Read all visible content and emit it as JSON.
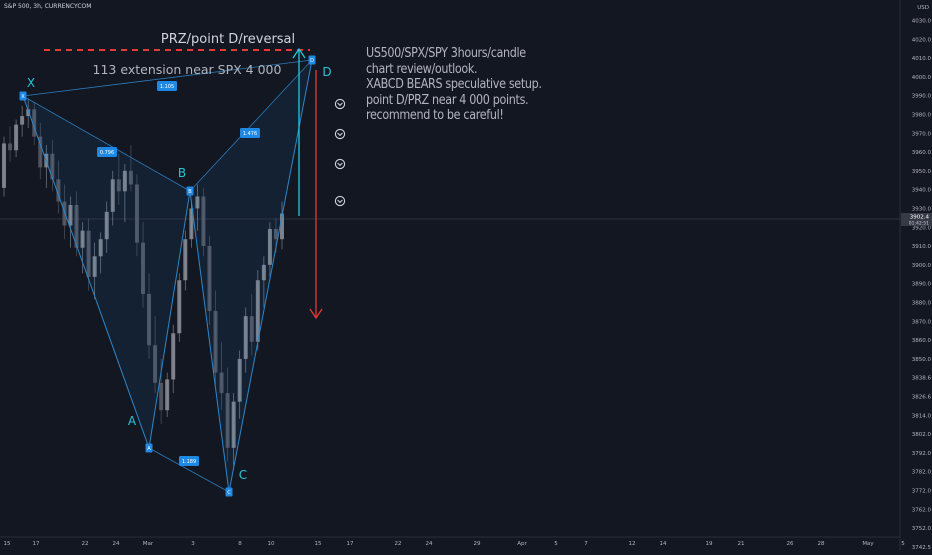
{
  "header": {
    "symbol": "S&P 500, 3h, CURRENCYCOM"
  },
  "annotations": {
    "prz_title": "PRZ/point D/reversal",
    "extension_text": "113 extension near SPX 4 000",
    "note_lines": [
      "US500/SPX/SPY 3hours/candle",
      "chart review/outlook.",
      "XABCD BEARS speculative setup.",
      "point D/PRZ near 4 000 points.",
      "recommend to be careful!"
    ]
  },
  "chart_data": {
    "type": "candlestick",
    "y_axis": {
      "ticks": [
        "4030.0",
        "4020.0",
        "4010.0",
        "4000.0",
        "3990.0",
        "3980.0",
        "3970.0",
        "3960.0",
        "3950.0",
        "3940.0",
        "3930.0",
        "3920.0",
        "3910.0",
        "3900.0",
        "3890.0",
        "3880.0",
        "3870.0",
        "3860.0",
        "3850.0",
        "3838.6",
        "3826.6",
        "3814.0",
        "3802.0",
        "3792.0",
        "3782.0",
        "3772.0",
        "3762.0",
        "3752.0",
        "3742.5"
      ],
      "top_label": "USD",
      "current_price": "3902.4",
      "countdown": "01:42:51"
    },
    "x_axis": {
      "ticks": [
        "15",
        "17",
        "22",
        "24",
        "Mar",
        "3",
        "8",
        "10",
        "15",
        "17",
        "22",
        "24",
        "29",
        "Apr",
        "5",
        "7",
        "12",
        "14",
        "19",
        "21",
        "26",
        "28",
        "May",
        "5"
      ]
    },
    "pattern": {
      "name": "XABCD",
      "points": [
        {
          "label": "X",
          "time": "Feb 16",
          "price": 3970
        },
        {
          "label": "A",
          "time": "Feb 26",
          "price": 3785
        },
        {
          "label": "B",
          "time": "Mar 2",
          "price": 3920
        },
        {
          "label": "C",
          "time": "Mar 8",
          "price": 3758
        },
        {
          "label": "D",
          "time": "Mar 12",
          "price": 3992
        }
      ],
      "ratios": [
        {
          "leg": "XD",
          "value": "1.105"
        },
        {
          "leg": "XB",
          "value": "0.796"
        },
        {
          "leg": "BD",
          "value": "1.476"
        },
        {
          "leg": "AC",
          "value": "1.189"
        }
      ]
    },
    "candles": [
      [
        3920,
        3950,
        3915,
        3946
      ],
      [
        3946,
        3956,
        3935,
        3942
      ],
      [
        3942,
        3960,
        3938,
        3957
      ],
      [
        3957,
        3968,
        3950,
        3962
      ],
      [
        3962,
        3972,
        3955,
        3966
      ],
      [
        3966,
        3970,
        3945,
        3950
      ],
      [
        3950,
        3958,
        3925,
        3932
      ],
      [
        3932,
        3945,
        3920,
        3940
      ],
      [
        3940,
        3948,
        3918,
        3925
      ],
      [
        3925,
        3936,
        3905,
        3912
      ],
      [
        3912,
        3922,
        3890,
        3898
      ],
      [
        3898,
        3915,
        3885,
        3910
      ],
      [
        3910,
        3918,
        3880,
        3885
      ],
      [
        3885,
        3900,
        3870,
        3895
      ],
      [
        3895,
        3902,
        3860,
        3868
      ],
      [
        3868,
        3888,
        3855,
        3880
      ],
      [
        3880,
        3894,
        3870,
        3890
      ],
      [
        3890,
        3912,
        3882,
        3906
      ],
      [
        3906,
        3930,
        3898,
        3925
      ],
      [
        3925,
        3940,
        3910,
        3918
      ],
      [
        3918,
        3934,
        3900,
        3930
      ],
      [
        3930,
        3945,
        3918,
        3922
      ],
      [
        3922,
        3928,
        3880,
        3888
      ],
      [
        3888,
        3900,
        3850,
        3858
      ],
      [
        3858,
        3870,
        3820,
        3828
      ],
      [
        3828,
        3845,
        3800,
        3806
      ],
      [
        3806,
        3820,
        3782,
        3790
      ],
      [
        3790,
        3812,
        3786,
        3808
      ],
      [
        3808,
        3840,
        3800,
        3835
      ],
      [
        3835,
        3870,
        3830,
        3866
      ],
      [
        3866,
        3895,
        3860,
        3890
      ],
      [
        3890,
        3912,
        3885,
        3908
      ],
      [
        3908,
        3922,
        3895,
        3915
      ],
      [
        3915,
        3920,
        3880,
        3886
      ],
      [
        3886,
        3892,
        3840,
        3848
      ],
      [
        3848,
        3860,
        3805,
        3812
      ],
      [
        3812,
        3830,
        3790,
        3800
      ],
      [
        3800,
        3815,
        3760,
        3768
      ],
      [
        3768,
        3800,
        3755,
        3795
      ],
      [
        3795,
        3825,
        3785,
        3820
      ],
      [
        3820,
        3850,
        3812,
        3845
      ],
      [
        3845,
        3858,
        3822,
        3830
      ],
      [
        3830,
        3872,
        3825,
        3866
      ],
      [
        3866,
        3880,
        3850,
        3875
      ],
      [
        3875,
        3900,
        3868,
        3896
      ],
      [
        3896,
        3902,
        3882,
        3890
      ],
      [
        3890,
        3912,
        3884,
        3905
      ]
    ]
  }
}
